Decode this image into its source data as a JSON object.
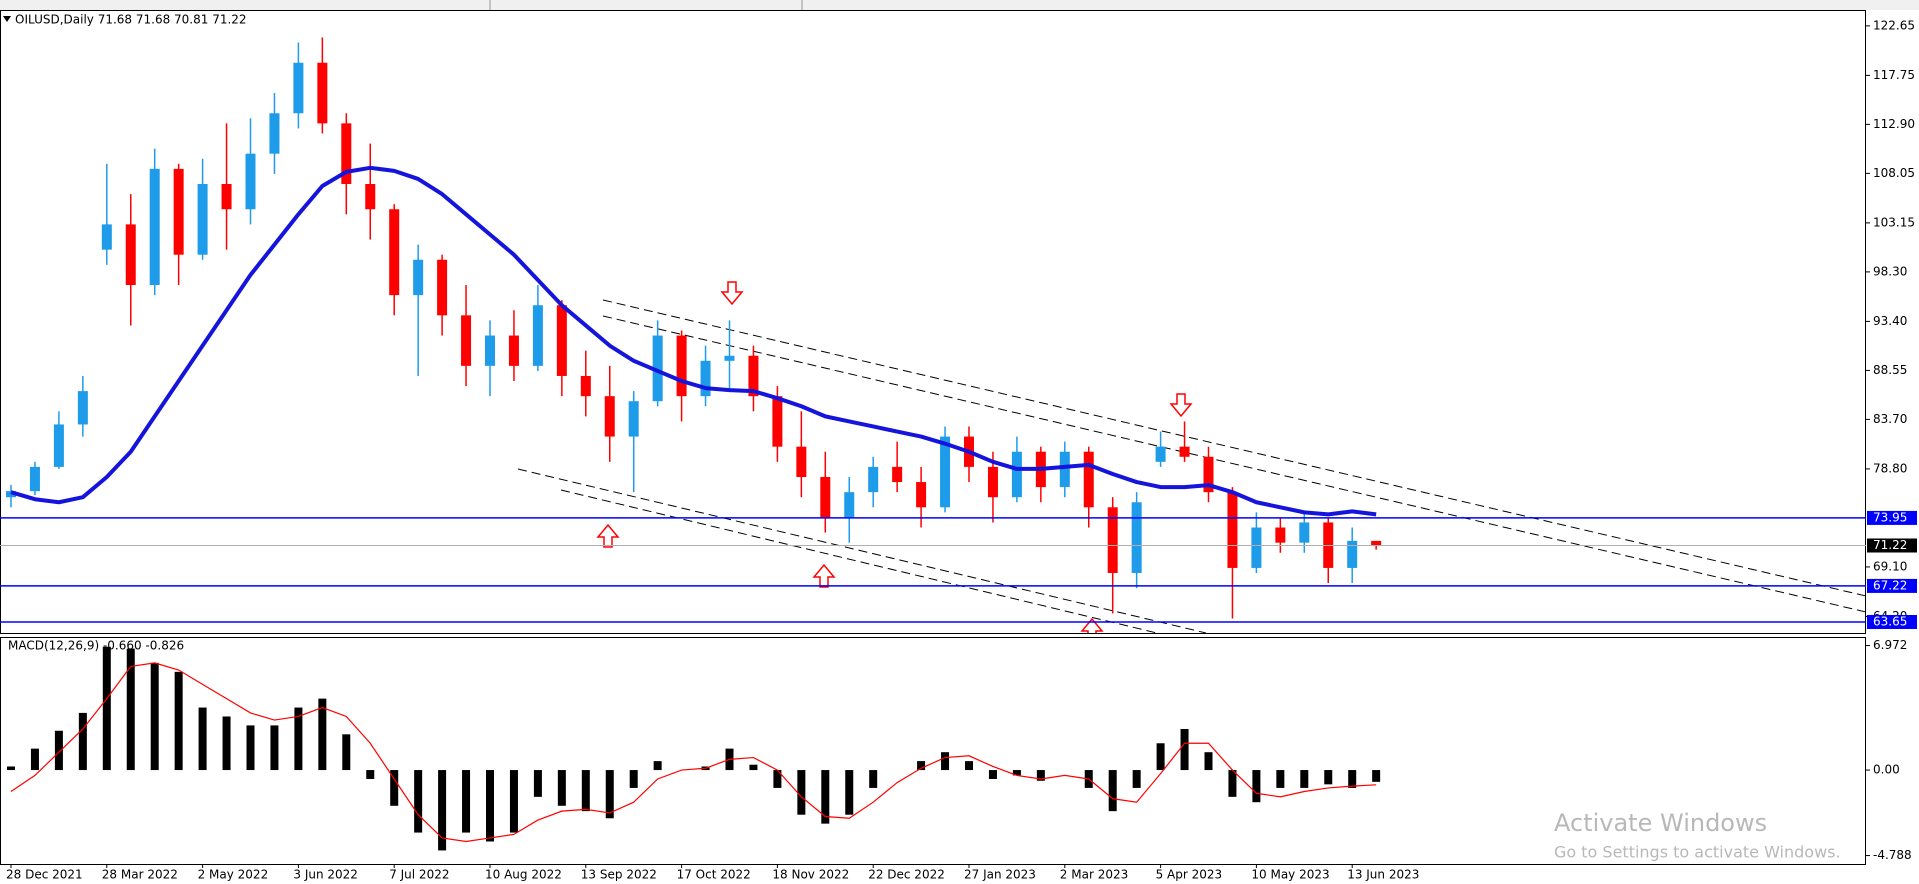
{
  "chart_data": [
    {
      "type": "candlestick",
      "title": "OILUSD,Daily 71.68 71.68 70.81 71.22",
      "categories": [
        "28 Dec 2021",
        null,
        null,
        null,
        "28 Mar 2022",
        null,
        null,
        null,
        "2 May 2022",
        null,
        null,
        null,
        "3 Jun 2022",
        null,
        null,
        null,
        "7 Jul 2022",
        null,
        null,
        null,
        "10 Aug 2022",
        null,
        null,
        null,
        "13 Sep 2022",
        null,
        null,
        null,
        "17 Oct 2022",
        null,
        null,
        null,
        "18 Nov 2022",
        null,
        null,
        null,
        "22 Dec 2022",
        null,
        null,
        null,
        "27 Jan 2023",
        null,
        null,
        null,
        "2 Mar 2023",
        null,
        null,
        null,
        "5 Apr 2023",
        null,
        null,
        null,
        "10 May 2023",
        null,
        null,
        null,
        "13 Jun 2023",
        null
      ],
      "open": [
        76.0,
        76.6,
        79.0,
        83.2,
        100.5,
        103.0,
        97.0,
        108.5,
        100.0,
        107.0,
        104.5,
        110.0,
        114.0,
        119.0,
        113.0,
        107.0,
        104.5,
        96.0,
        99.5,
        94.0,
        89.0,
        92.0,
        89.0,
        95.0,
        88.0,
        86.0,
        82.0,
        85.5,
        92.0,
        86.0,
        89.5,
        90.0,
        86.0,
        81.0,
        78.0,
        74.0,
        76.5,
        79.0,
        77.5,
        75.0,
        82.0,
        79.0,
        76.0,
        80.5,
        77.0,
        80.5,
        75.0,
        68.5,
        79.5,
        81.0,
        80.0,
        76.5,
        69.0,
        73.0,
        71.5,
        73.5,
        69.0,
        71.68
      ],
      "high": [
        77.2,
        79.5,
        84.5,
        88.0,
        109.0,
        106.0,
        110.5,
        109.0,
        109.5,
        113.0,
        113.5,
        116.0,
        121.0,
        121.5,
        114.0,
        111.0,
        105.0,
        101.0,
        100.0,
        97.0,
        93.5,
        94.5,
        97.0,
        95.5,
        90.5,
        89.0,
        86.5,
        93.5,
        92.5,
        91.0,
        93.5,
        91.0,
        87.0,
        84.5,
        80.5,
        78.0,
        80.0,
        81.5,
        79.0,
        83.0,
        83.0,
        80.5,
        82.0,
        81.0,
        81.5,
        81.0,
        76.0,
        76.5,
        82.5,
        83.5,
        81.0,
        77.0,
        74.5,
        74.0,
        74.5,
        74.0,
        73.0,
        71.68
      ],
      "low": [
        75.0,
        76.2,
        78.8,
        82.0,
        99.0,
        93.0,
        96.0,
        97.0,
        99.5,
        100.5,
        103.0,
        108.0,
        112.5,
        112.0,
        104.0,
        101.5,
        94.0,
        88.0,
        92.0,
        87.0,
        86.0,
        87.5,
        88.5,
        86.0,
        84.0,
        79.5,
        76.5,
        85.0,
        83.5,
        85.0,
        86.5,
        84.5,
        79.5,
        76.0,
        72.5,
        71.5,
        75.0,
        76.5,
        73.0,
        74.5,
        77.5,
        73.5,
        75.5,
        75.5,
        76.0,
        73.0,
        64.5,
        67.0,
        79.0,
        79.5,
        75.5,
        64.0,
        68.5,
        70.5,
        70.5,
        67.5,
        67.5,
        70.81
      ],
      "close": [
        76.6,
        79.0,
        83.2,
        86.5,
        103.0,
        97.0,
        108.5,
        100.0,
        107.0,
        104.5,
        110.0,
        114.0,
        119.0,
        113.0,
        107.0,
        104.5,
        96.0,
        99.5,
        94.0,
        89.0,
        92.0,
        89.0,
        95.0,
        88.0,
        86.0,
        82.0,
        85.5,
        92.0,
        86.0,
        89.5,
        90.0,
        86.0,
        81.0,
        78.0,
        74.0,
        76.5,
        79.0,
        77.5,
        75.0,
        82.0,
        79.0,
        76.0,
        80.5,
        77.0,
        80.5,
        75.0,
        68.5,
        75.5,
        81.0,
        80.0,
        76.5,
        69.0,
        73.0,
        71.5,
        73.5,
        69.0,
        71.68,
        71.22
      ],
      "up_color": "#1e9be9",
      "down_color": "#ff0000",
      "ma": {
        "color": "#1414dc",
        "values": [
          76.5,
          75.8,
          75.5,
          76.0,
          78.0,
          80.5,
          84.0,
          87.5,
          91.0,
          94.5,
          98.0,
          101.0,
          104.0,
          106.8,
          108.2,
          108.6,
          108.3,
          107.5,
          106.0,
          104.0,
          102.0,
          100.0,
          97.5,
          95.0,
          93.0,
          91.0,
          89.5,
          88.5,
          87.5,
          86.8,
          86.6,
          86.5,
          85.8,
          85.0,
          84.0,
          83.5,
          83.0,
          82.5,
          82.0,
          81.3,
          80.5,
          79.5,
          78.8,
          78.8,
          79.0,
          79.2,
          78.3,
          77.5,
          77.0,
          77.0,
          77.2,
          76.5,
          75.5,
          75.0,
          74.5,
          74.3,
          74.6,
          74.3
        ]
      },
      "levels": [
        73.95,
        67.22,
        63.65
      ],
      "level_color": "#0000ff",
      "ylim": [
        62.56,
        124.22
      ],
      "yticks": [
        122.65,
        117.75,
        {
          "value": 112.9,
          "label": "112.90"
        },
        108.05,
        103.15,
        {
          "value": 98.3,
          "label": "98.30"
        },
        {
          "value": 93.4,
          "label": "93.40"
        },
        88.55,
        {
          "value": 83.7,
          "label": "83.70"
        },
        {
          "value": 78.8,
          "label": "78.80"
        },
        {
          "value": 69.1,
          "label": "69.10"
        },
        {
          "value": 64.2,
          "label": "64.20"
        }
      ],
      "grid": false
    },
    {
      "type": "macd",
      "title": "MACD(12,26,9) -0.660 -0.826",
      "values": [
        0.2,
        1.2,
        2.2,
        3.2,
        6.9,
        6.8,
        6.0,
        5.5,
        3.5,
        3.0,
        2.5,
        2.5,
        3.5,
        4.0,
        2.0,
        -0.5,
        -2.0,
        -3.5,
        -4.5,
        -3.5,
        -4.0,
        -3.5,
        -1.5,
        -2.0,
        -2.3,
        -2.7,
        -1.0,
        0.5,
        0.0,
        0.2,
        1.2,
        0.3,
        -1.0,
        -2.5,
        -3.0,
        -2.5,
        -1.0,
        0.0,
        0.5,
        1.0,
        0.5,
        -0.5,
        -0.3,
        -0.6,
        0.0,
        -1.0,
        -2.3,
        -1.0,
        1.5,
        2.3,
        1.0,
        -1.5,
        -1.8,
        -1.0,
        -1.0,
        -0.8,
        -1.0,
        -0.66
      ],
      "color": "#000000",
      "signal": {
        "color": "#ff0000",
        "values": [
          -1.2,
          -0.3,
          1.0,
          2.3,
          4.0,
          5.8,
          6.0,
          5.6,
          4.8,
          4.0,
          3.2,
          2.8,
          3.0,
          3.5,
          3.0,
          1.5,
          -0.5,
          -2.5,
          -3.8,
          -4.0,
          -3.8,
          -3.6,
          -2.8,
          -2.3,
          -2.2,
          -2.4,
          -1.8,
          -0.5,
          0.0,
          0.1,
          0.6,
          0.7,
          0.0,
          -1.5,
          -2.6,
          -2.7,
          -1.8,
          -0.7,
          0.1,
          0.7,
          0.8,
          0.2,
          -0.3,
          -0.5,
          -0.3,
          -0.5,
          -1.6,
          -1.8,
          -0.2,
          1.5,
          1.5,
          0.0,
          -1.3,
          -1.5,
          -1.2,
          -1.0,
          -0.9,
          -0.826
        ]
      },
      "ylim": [
        -5.26,
        7.45
      ],
      "yticks": [
        6.972,
        {
          "value": 0,
          "label": "0.00"
        },
        -4.788
      ]
    },
    {
      "watermark": [
        "Activate Windows",
        "Go to Settings to activate Windows."
      ]
    }
  ]
}
